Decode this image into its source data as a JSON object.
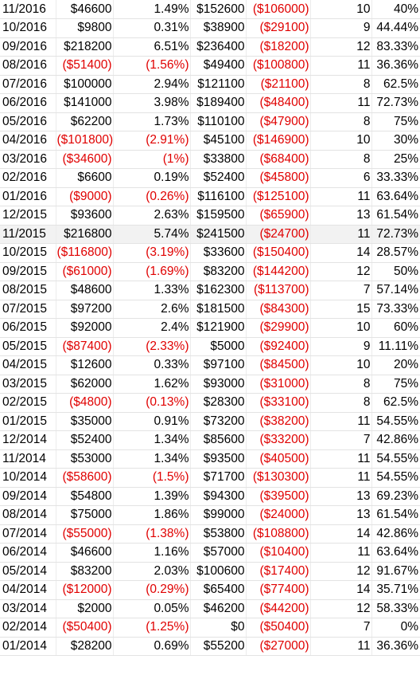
{
  "colors": {
    "negative": "#e00000",
    "text": "#000000",
    "gridline": "#e3e3e3"
  },
  "rows": [
    {
      "month": "11/2016",
      "gain": "$46600",
      "pct": "1.49%",
      "gross": "$152600",
      "loss": "($106000)",
      "count": "10",
      "win": "40%"
    },
    {
      "month": "10/2016",
      "gain": "$9800",
      "pct": "0.31%",
      "gross": "$38900",
      "loss": "($29100)",
      "count": "9",
      "win": "44.44%"
    },
    {
      "month": "09/2016",
      "gain": "$218200",
      "pct": "6.51%",
      "gross": "$236400",
      "loss": "($18200)",
      "count": "12",
      "win": "83.33%"
    },
    {
      "month": "08/2016",
      "gain": "($51400)",
      "pct": "(1.56%)",
      "gross": "$49400",
      "loss": "($100800)",
      "count": "11",
      "win": "36.36%"
    },
    {
      "month": "07/2016",
      "gain": "$100000",
      "pct": "2.94%",
      "gross": "$121100",
      "loss": "($21100)",
      "count": "8",
      "win": "62.5%"
    },
    {
      "month": "06/2016",
      "gain": "$141000",
      "pct": "3.98%",
      "gross": "$189400",
      "loss": "($48400)",
      "count": "11",
      "win": "72.73%"
    },
    {
      "month": "05/2016",
      "gain": "$62200",
      "pct": "1.73%",
      "gross": "$110100",
      "loss": "($47900)",
      "count": "8",
      "win": "75%"
    },
    {
      "month": "04/2016",
      "gain": "($101800)",
      "pct": "(2.91%)",
      "gross": "$45100",
      "loss": "($146900)",
      "count": "10",
      "win": "30%"
    },
    {
      "month": "03/2016",
      "gain": "($34600)",
      "pct": "(1%)",
      "gross": "$33800",
      "loss": "($68400)",
      "count": "8",
      "win": "25%"
    },
    {
      "month": "02/2016",
      "gain": "$6600",
      "pct": "0.19%",
      "gross": "$52400",
      "loss": "($45800)",
      "count": "6",
      "win": "33.33%"
    },
    {
      "month": "01/2016",
      "gain": "($9000)",
      "pct": "(0.26%)",
      "gross": "$116100",
      "loss": "($125100)",
      "count": "11",
      "win": "63.64%"
    },
    {
      "month": "12/2015",
      "gain": "$93600",
      "pct": "2.63%",
      "gross": "$159500",
      "loss": "($65900)",
      "count": "13",
      "win": "61.54%"
    },
    {
      "month": "11/2015",
      "gain": "$216800",
      "pct": "5.74%",
      "gross": "$241500",
      "loss": "($24700)",
      "count": "11",
      "win": "72.73%"
    },
    {
      "month": "10/2015",
      "gain": "($116800)",
      "pct": "(3.19%)",
      "gross": "$33600",
      "loss": "($150400)",
      "count": "14",
      "win": "28.57%"
    },
    {
      "month": "09/2015",
      "gain": "($61000)",
      "pct": "(1.69%)",
      "gross": "$83200",
      "loss": "($144200)",
      "count": "12",
      "win": "50%"
    },
    {
      "month": "08/2015",
      "gain": "$48600",
      "pct": "1.33%",
      "gross": "$162300",
      "loss": "($113700)",
      "count": "7",
      "win": "57.14%"
    },
    {
      "month": "07/2015",
      "gain": "$97200",
      "pct": "2.6%",
      "gross": "$181500",
      "loss": "($84300)",
      "count": "15",
      "win": "73.33%"
    },
    {
      "month": "06/2015",
      "gain": "$92000",
      "pct": "2.4%",
      "gross": "$121900",
      "loss": "($29900)",
      "count": "10",
      "win": "60%"
    },
    {
      "month": "05/2015",
      "gain": "($87400)",
      "pct": "(2.33%)",
      "gross": "$5000",
      "loss": "($92400)",
      "count": "9",
      "win": "11.11%"
    },
    {
      "month": "04/2015",
      "gain": "$12600",
      "pct": "0.33%",
      "gross": "$97100",
      "loss": "($84500)",
      "count": "10",
      "win": "20%"
    },
    {
      "month": "03/2015",
      "gain": "$62000",
      "pct": "1.62%",
      "gross": "$93000",
      "loss": "($31000)",
      "count": "8",
      "win": "75%"
    },
    {
      "month": "02/2015",
      "gain": "($4800)",
      "pct": "(0.13%)",
      "gross": "$28300",
      "loss": "($33100)",
      "count": "8",
      "win": "62.5%"
    },
    {
      "month": "01/2015",
      "gain": "$35000",
      "pct": "0.91%",
      "gross": "$73200",
      "loss": "($38200)",
      "count": "11",
      "win": "54.55%"
    },
    {
      "month": "12/2014",
      "gain": "$52400",
      "pct": "1.34%",
      "gross": "$85600",
      "loss": "($33200)",
      "count": "7",
      "win": "42.86%"
    },
    {
      "month": "11/2014",
      "gain": "$53000",
      "pct": "1.34%",
      "gross": "$93500",
      "loss": "($40500)",
      "count": "11",
      "win": "54.55%"
    },
    {
      "month": "10/2014",
      "gain": "($58600)",
      "pct": "(1.5%)",
      "gross": "$71700",
      "loss": "($130300)",
      "count": "11",
      "win": "54.55%"
    },
    {
      "month": "09/2014",
      "gain": "$54800",
      "pct": "1.39%",
      "gross": "$94300",
      "loss": "($39500)",
      "count": "13",
      "win": "69.23%"
    },
    {
      "month": "08/2014",
      "gain": "$75000",
      "pct": "1.86%",
      "gross": "$99000",
      "loss": "($24000)",
      "count": "13",
      "win": "61.54%"
    },
    {
      "month": "07/2014",
      "gain": "($55000)",
      "pct": "(1.38%)",
      "gross": "$53800",
      "loss": "($108800)",
      "count": "14",
      "win": "42.86%"
    },
    {
      "month": "06/2014",
      "gain": "$46600",
      "pct": "1.16%",
      "gross": "$57000",
      "loss": "($10400)",
      "count": "11",
      "win": "63.64%"
    },
    {
      "month": "05/2014",
      "gain": "$83200",
      "pct": "2.03%",
      "gross": "$100600",
      "loss": "($17400)",
      "count": "12",
      "win": "91.67%"
    },
    {
      "month": "04/2014",
      "gain": "($12000)",
      "pct": "(0.29%)",
      "gross": "$65400",
      "loss": "($77400)",
      "count": "14",
      "win": "35.71%"
    },
    {
      "month": "03/2014",
      "gain": "$2000",
      "pct": "0.05%",
      "gross": "$46200",
      "loss": "($44200)",
      "count": "12",
      "win": "58.33%"
    },
    {
      "month": "02/2014",
      "gain": "($50400)",
      "pct": "(1.25%)",
      "gross": "$0",
      "loss": "($50400)",
      "count": "7",
      "win": "0%"
    },
    {
      "month": "01/2014",
      "gain": "$28200",
      "pct": "0.69%",
      "gross": "$55200",
      "loss": "($27000)",
      "count": "11",
      "win": "36.36%"
    }
  ]
}
